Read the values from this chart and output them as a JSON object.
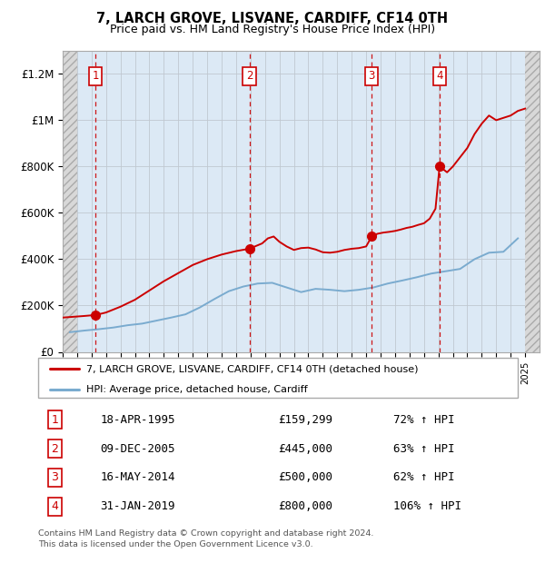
{
  "title": "7, LARCH GROVE, LISVANE, CARDIFF, CF14 0TH",
  "subtitle": "Price paid vs. HM Land Registry's House Price Index (HPI)",
  "x_start_year": 1993,
  "x_end_year": 2026,
  "ylim": [
    0,
    1300000
  ],
  "yticks": [
    0,
    200000,
    400000,
    600000,
    800000,
    1000000,
    1200000
  ],
  "ytick_labels": [
    "£0",
    "£200K",
    "£400K",
    "£600K",
    "£800K",
    "£1M",
    "£1.2M"
  ],
  "hpi_x": [
    1993.5,
    1994.5,
    1995.5,
    1996.5,
    1997.5,
    1998.5,
    1999.5,
    2000.5,
    2001.5,
    2002.5,
    2003.5,
    2004.5,
    2005.5,
    2006.5,
    2007.5,
    2008.5,
    2009.5,
    2010.5,
    2011.5,
    2012.5,
    2013.5,
    2014.5,
    2015.5,
    2016.5,
    2017.5,
    2018.5,
    2019.5,
    2020.5,
    2021.5,
    2022.5,
    2023.5,
    2024.5
  ],
  "hpi_y": [
    85000,
    92000,
    98000,
    105000,
    115000,
    122000,
    135000,
    148000,
    162000,
    192000,
    228000,
    262000,
    282000,
    295000,
    298000,
    278000,
    258000,
    272000,
    268000,
    262000,
    268000,
    278000,
    295000,
    308000,
    322000,
    338000,
    348000,
    358000,
    400000,
    428000,
    432000,
    490000
  ],
  "prop_years": [
    1993.0,
    1994.5,
    1995.3,
    1996.0,
    1997.0,
    1998.0,
    1999.0,
    2000.0,
    2001.0,
    2002.0,
    2003.0,
    2004.0,
    2005.0,
    2005.9,
    2006.3,
    2006.8,
    2007.2,
    2007.6,
    2008.0,
    2008.5,
    2009.0,
    2009.5,
    2010.0,
    2010.5,
    2011.0,
    2011.5,
    2012.0,
    2012.5,
    2013.0,
    2013.5,
    2014.0,
    2014.4,
    2014.8,
    2015.2,
    2015.6,
    2016.0,
    2016.4,
    2016.8,
    2017.2,
    2017.6,
    2018.0,
    2018.4,
    2018.8,
    2019.08,
    2019.3,
    2019.6,
    2020.0,
    2020.5,
    2021.0,
    2021.5,
    2022.0,
    2022.5,
    2023.0,
    2023.5,
    2024.0,
    2024.5,
    2025.0
  ],
  "prop_prices": [
    148000,
    155000,
    159299,
    170000,
    195000,
    225000,
    265000,
    305000,
    340000,
    375000,
    400000,
    420000,
    435000,
    445000,
    455000,
    468000,
    490000,
    498000,
    475000,
    455000,
    440000,
    448000,
    450000,
    442000,
    430000,
    428000,
    432000,
    440000,
    445000,
    448000,
    455000,
    500000,
    510000,
    515000,
    518000,
    522000,
    528000,
    535000,
    540000,
    548000,
    555000,
    575000,
    618000,
    800000,
    790000,
    775000,
    800000,
    840000,
    880000,
    940000,
    985000,
    1020000,
    1000000,
    1010000,
    1020000,
    1040000,
    1050000
  ],
  "sales": [
    {
      "label": "1",
      "x": 1995.29,
      "price": 159299
    },
    {
      "label": "2",
      "x": 2005.92,
      "price": 445000
    },
    {
      "label": "3",
      "x": 2014.37,
      "price": 500000
    },
    {
      "label": "4",
      "x": 2019.08,
      "price": 800000
    }
  ],
  "legend_house_label": "7, LARCH GROVE, LISVANE, CARDIFF, CF14 0TH (detached house)",
  "legend_hpi_label": "HPI: Average price, detached house, Cardiff",
  "table_rows": [
    {
      "num": "1",
      "date": "18-APR-1995",
      "price": "£159,299",
      "change": "72% ↑ HPI"
    },
    {
      "num": "2",
      "date": "09-DEC-2005",
      "price": "£445,000",
      "change": "63% ↑ HPI"
    },
    {
      "num": "3",
      "date": "16-MAY-2014",
      "price": "£500,000",
      "change": "62% ↑ HPI"
    },
    {
      "num": "4",
      "date": "31-JAN-2019",
      "price": "£800,000",
      "change": "106% ↑ HPI"
    }
  ],
  "footer_line1": "Contains HM Land Registry data © Crown copyright and database right 2024.",
  "footer_line2": "This data is licensed under the Open Government Licence v3.0.",
  "house_line_color": "#cc0000",
  "hpi_line_color": "#7aabcf",
  "sale_dot_color": "#cc0000",
  "vline_color": "#cc0000",
  "bg_plot_color": "#dce9f5",
  "hatch_face_color": "#d8d8d8",
  "grid_color": "#c0c8d0"
}
